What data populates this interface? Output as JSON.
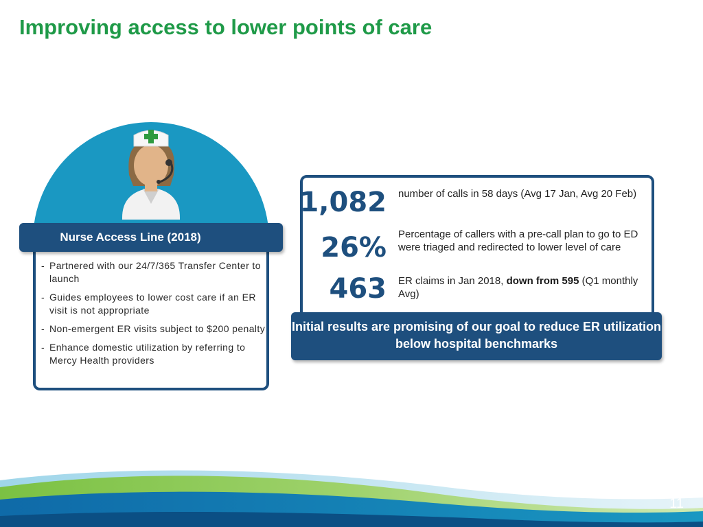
{
  "title": "Improving access to lower points of care",
  "left_panel": {
    "header": "Nurse Access Line (2018)",
    "bullets": [
      {
        "dash": "-",
        "text": "Partnered with our 24/7/365 Transfer Center to launch"
      },
      {
        "dash": "-",
        "text": "Guides employees to lower cost care if an ER visit is not appropriate"
      },
      {
        "dash": "-",
        "text": "Non-emergent ER visits subject to $200 penalty"
      },
      {
        "dash": "-",
        "text": "Enhance domestic utilization by referring to Mercy Health providers"
      }
    ]
  },
  "stats": [
    {
      "value": "1,082",
      "desc": "number of calls in 58 days (Avg 17 Jan, Avg 20 Feb)"
    },
    {
      "value": "26%",
      "desc": "Percentage of callers with a pre-call plan to go to ED were triaged and redirected to lower level of care"
    },
    {
      "value": "463",
      "desc_pre": "ER claims in Jan 2018, ",
      "desc_bold": "down from 595",
      "desc_post": " (Q1 monthly Avg)"
    }
  ],
  "banner": "Initial results are promising of our goal to reduce ER utilization below hospital benchmarks",
  "icons": {
    "nurse": "nurse-headset-icon",
    "cross": "medical-cross-icon"
  },
  "colors": {
    "title_green": "#1f9a48",
    "navy": "#1e4f7e",
    "circle_blue": "#1a98c2",
    "cross_green": "#2e9a3e"
  },
  "page_number": "11"
}
